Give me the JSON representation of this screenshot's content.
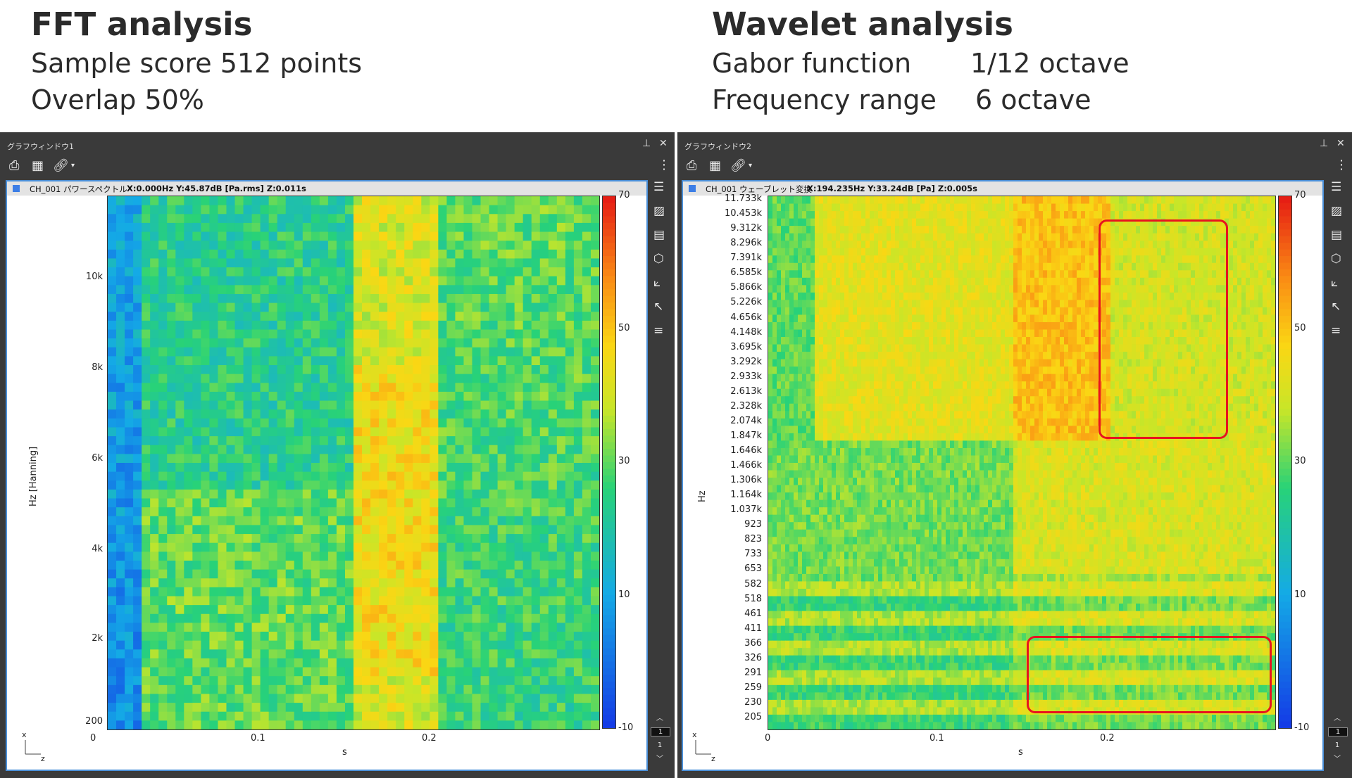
{
  "header": {
    "fft": {
      "title": "FFT analysis",
      "line1": "Sample score 512 points",
      "line2": "Overlap 50%"
    },
    "wavelet": {
      "title": "Wavelet analysis",
      "line1_label": "Gabor function",
      "line1_value": "1/12 octave",
      "line2_label": "Frequency range",
      "line2_value": "6 octave"
    }
  },
  "windows": [
    {
      "title": "グラフウィンドウ1",
      "channel": "CH_001  パワースペクトル",
      "coords": "X:0.000Hz Y:45.87dB [Pa.rms] Z:0.011s",
      "page_current": "1",
      "page_total": "1",
      "icons": [
        "print-icon",
        "grid-icon",
        "link-icon",
        "menu-dots-icon"
      ],
      "side_icons": [
        "list-icon",
        "image-icon",
        "table-icon",
        "cube-icon",
        "axes-icon",
        "cursor-icon",
        "lines-icon"
      ]
    },
    {
      "title": "グラフウィンドウ2",
      "channel": "CH_001  ウェーブレット変換",
      "coords": "X:194.235Hz Y:33.24dB [Pa] Z:0.005s",
      "page_current": "1",
      "page_total": "1",
      "icons": [
        "print-icon",
        "grid-icon",
        "link-icon",
        "menu-dots-icon"
      ],
      "side_icons": [
        "list-icon",
        "image-icon",
        "table-icon",
        "cube-icon",
        "axes-icon",
        "cursor-icon",
        "lines-icon"
      ]
    }
  ],
  "chart_data": [
    {
      "type": "heatmap",
      "title": "",
      "xlabel": "s",
      "ylabel": "Hz [Hanning]",
      "x_ticks": [
        "0",
        "0.1",
        "0.2"
      ],
      "y_ticks": [
        "200",
        "2k",
        "4k",
        "6k",
        "8k",
        "10k"
      ],
      "xlim": [
        0,
        0.29
      ],
      "ylim": [
        200,
        11700
      ],
      "colorbar": {
        "min": -10,
        "max": 70,
        "ticks": [
          "70",
          "50",
          "30",
          "10",
          "-10"
        ]
      },
      "corner_axes": {
        "x": "x",
        "z": "z"
      },
      "description_values": {
        "onset_s": [
          0.009,
          0.145
        ],
        "level_quiet_db": 10,
        "level_noise_db": 25,
        "level_loud_db": 40
      }
    },
    {
      "type": "heatmap",
      "title": "",
      "xlabel": "s",
      "ylabel": "Hz",
      "x_ticks": [
        "0",
        "0.1",
        "0.2"
      ],
      "y_ticks": [
        "11.733k",
        "10.453k",
        "9.312k",
        "8.296k",
        "7.391k",
        "6.585k",
        "5.866k",
        "5.226k",
        "4.656k",
        "4.148k",
        "3.695k",
        "3.292k",
        "2.933k",
        "2.613k",
        "2.328k",
        "2.074k",
        "1.847k",
        "1.646k",
        "1.466k",
        "1.306k",
        "1.164k",
        "1.037k",
        "923",
        "823",
        "733",
        "653",
        "582",
        "518",
        "461",
        "411",
        "366",
        "326",
        "291",
        "259",
        "230",
        "205"
      ],
      "xlim": [
        0,
        0.3
      ],
      "scale": "log",
      "colorbar": {
        "min": -10,
        "max": 70,
        "ticks": [
          "70",
          "50",
          "30",
          "10",
          "-10"
        ]
      },
      "corner_axes": {
        "x": "x",
        "z": "z"
      }
    }
  ]
}
